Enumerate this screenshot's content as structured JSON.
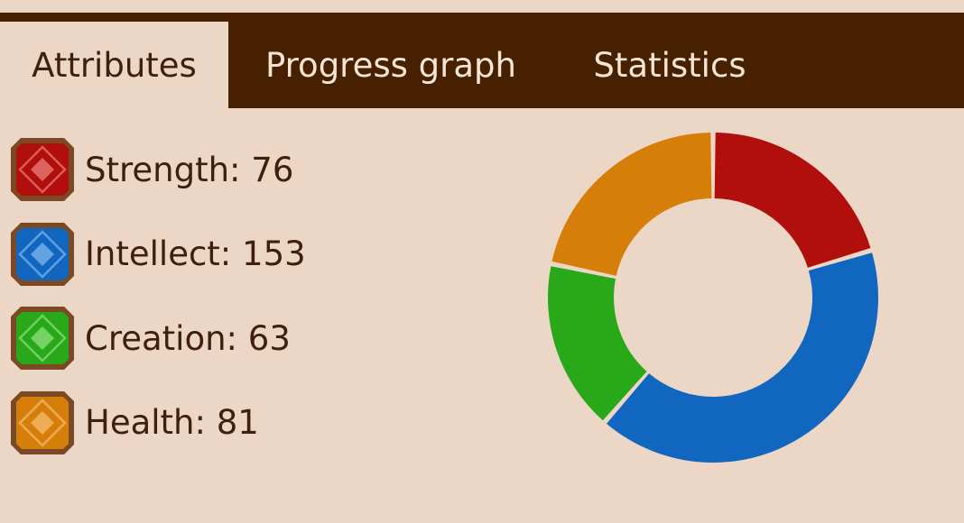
{
  "tabs": [
    {
      "label": "Attributes",
      "active": true
    },
    {
      "label": "Progress graph",
      "active": false
    },
    {
      "label": "Statistics",
      "active": false
    }
  ],
  "attributes": [
    {
      "label": "Strength: 76",
      "value": 76,
      "color": "#b00f0c",
      "light": "#e26b69",
      "icon": "strength-gem-icon"
    },
    {
      "label": "Intellect: 153",
      "value": 153,
      "color": "#1166bf",
      "light": "#6fa9e6",
      "icon": "intellect-gem-icon"
    },
    {
      "label": "Creation: 63",
      "value": 63,
      "color": "#29a81a",
      "light": "#7fd66e",
      "icon": "creation-gem-icon"
    },
    {
      "label": "Health: 81",
      "value": 81,
      "color": "#d57f0a",
      "light": "#f0b360",
      "icon": "health-gem-icon"
    }
  ],
  "chart_data": {
    "type": "pie",
    "variant": "donut",
    "categories": [
      "Strength",
      "Intellect",
      "Creation",
      "Health"
    ],
    "values": [
      76,
      153,
      63,
      81
    ],
    "colors": [
      "#b00f0c",
      "#1166bf",
      "#29a81a",
      "#d57f0a"
    ]
  },
  "colors": {
    "background": "#ecd6c5",
    "tab_bar": "#472000",
    "text": "#3e200c",
    "tab_text": "#f6e4d4",
    "icon_frame": "#7b4a24"
  }
}
